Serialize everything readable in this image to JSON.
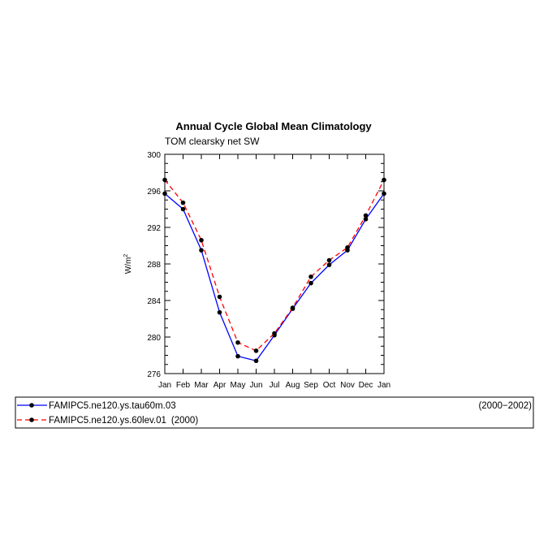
{
  "chart_data": {
    "type": "line",
    "title": "Annual Cycle Global Mean Climatology",
    "subtitle": "TOM clearsky net SW",
    "ylabel": "W/m",
    "ylabel_superscript": "2",
    "xlabel": "",
    "categories": [
      "Jan",
      "Feb",
      "Mar",
      "Apr",
      "May",
      "Jun",
      "Jul",
      "Aug",
      "Sep",
      "Oct",
      "Nov",
      "Dec",
      "Jan"
    ],
    "ylim": [
      276,
      300
    ],
    "yticks": [
      276,
      280,
      284,
      288,
      292,
      296,
      300
    ],
    "grid": false,
    "legend_position": "below",
    "series": [
      {
        "name": "FAMIPC5.ne120.ys.tau60m.03",
        "period": "(2000−2002)",
        "color": "#0000ff",
        "line_style": "solid",
        "values": [
          295.7,
          294.0,
          289.5,
          282.7,
          277.9,
          277.4,
          280.2,
          283.1,
          285.9,
          287.9,
          289.5,
          292.9,
          295.7
        ]
      },
      {
        "name": "FAMIPC5.ne120.ys.60lev.01",
        "period": "(2000)",
        "color": "#ff0000",
        "line_style": "dashed",
        "values": [
          297.2,
          294.7,
          290.6,
          284.4,
          279.4,
          278.5,
          280.4,
          283.2,
          286.6,
          288.4,
          289.8,
          293.3,
          297.2
        ]
      }
    ]
  }
}
